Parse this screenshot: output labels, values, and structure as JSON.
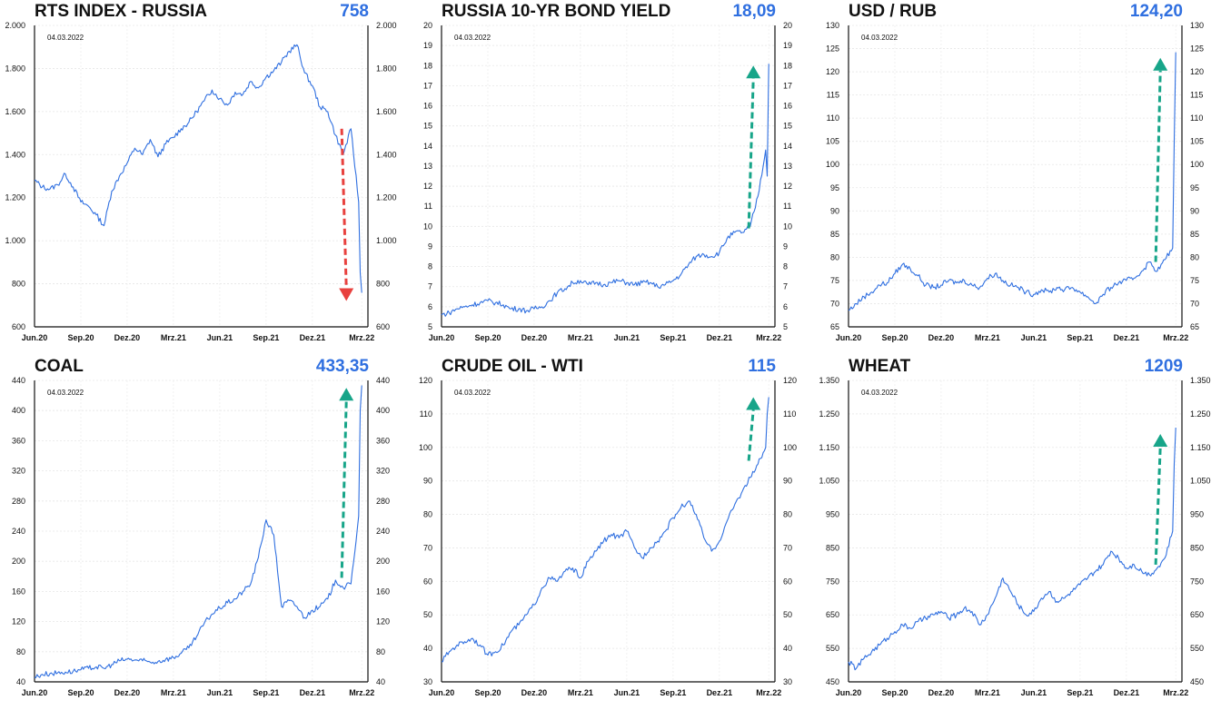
{
  "colors": {
    "line": "#2f6fe0",
    "up_arrow": "#17a589",
    "down_arrow": "#e8413e",
    "value": "#2f6fe0"
  },
  "chart_data": [
    {
      "type": "line",
      "title": "RTS INDEX - RUSSIA",
      "last_value_label": "758",
      "date_label": "04.03.2022",
      "x_ticks": [
        "Jun.20",
        "Sep.20",
        "Dez.20",
        "Mrz.21",
        "Jun.21",
        "Sep.21",
        "Dez.21",
        "Mrz.22"
      ],
      "y_ticks": [
        "600",
        "800",
        "1.000",
        "1.200",
        "1.400",
        "1.600",
        "1.800",
        "2.000"
      ],
      "ylim": [
        600,
        2000
      ],
      "arrow": "down",
      "arrow_from": 1520,
      "arrow_to": 720,
      "series": [
        {
          "x": [
            0,
            0.5,
            1,
            1.5,
            2,
            2.5,
            3,
            3.5,
            4,
            4.5,
            5,
            5.5,
            6,
            6.5,
            7,
            7.5,
            8,
            8.5,
            9,
            9.5,
            10,
            10.5,
            11,
            11.5,
            12,
            12.5,
            13,
            13.5,
            14,
            14.5,
            15,
            15.5,
            16,
            16.5,
            17,
            17.5,
            18,
            18.5,
            19,
            19.5,
            20,
            20.5,
            21,
            21.1,
            21.2
          ],
          "values": [
            1280,
            1250,
            1240,
            1260,
            1310,
            1250,
            1180,
            1160,
            1120,
            1070,
            1230,
            1300,
            1360,
            1430,
            1400,
            1470,
            1390,
            1450,
            1480,
            1520,
            1550,
            1600,
            1650,
            1700,
            1660,
            1630,
            1690,
            1680,
            1740,
            1710,
            1760,
            1790,
            1830,
            1880,
            1910,
            1780,
            1720,
            1620,
            1600,
            1490,
            1400,
            1520,
            1180,
            850,
            758
          ]
        }
      ]
    },
    {
      "type": "line",
      "title": "RUSSIA 10-YR BOND YIELD",
      "last_value_label": "18,09",
      "date_label": "04.03.2022",
      "x_ticks": [
        "Jun.20",
        "Sep.20",
        "Dez.20",
        "Mrz.21",
        "Jun.21",
        "Sep.21",
        "Dez.21",
        "Mrz.22"
      ],
      "y_ticks": [
        "5",
        "6",
        "7",
        "8",
        "9",
        "10",
        "11",
        "12",
        "13",
        "14",
        "15",
        "16",
        "17",
        "18",
        "19",
        "20"
      ],
      "ylim": [
        5,
        20
      ],
      "arrow": "up",
      "arrow_from": 9.9,
      "arrow_to": 18,
      "series": [
        {
          "x": [
            0,
            0.5,
            1,
            1.5,
            2,
            2.5,
            3,
            3.5,
            4,
            4.5,
            5,
            5.5,
            6,
            6.5,
            7,
            7.5,
            8,
            8.5,
            9,
            9.5,
            10,
            10.5,
            11,
            11.5,
            12,
            12.5,
            13,
            13.5,
            14,
            14.5,
            15,
            15.5,
            16,
            16.5,
            17,
            17.5,
            18,
            18.5,
            19,
            19.5,
            20,
            20.5,
            21,
            21.1,
            21.2
          ],
          "values": [
            5.6,
            5.7,
            5.9,
            6.0,
            6.1,
            6.2,
            6.3,
            6.2,
            6.1,
            5.9,
            5.9,
            5.8,
            5.9,
            6.0,
            6.3,
            6.7,
            6.9,
            7.2,
            7.3,
            7.1,
            7.2,
            7.1,
            7.2,
            7.3,
            7.2,
            7.1,
            7.2,
            7.2,
            7.0,
            7.1,
            7.3,
            7.6,
            8.1,
            8.5,
            8.6,
            8.5,
            8.7,
            9.4,
            9.7,
            9.7,
            10.0,
            11.5,
            13.8,
            12.5,
            18.09
          ]
        }
      ]
    },
    {
      "type": "line",
      "title": "USD / RUB",
      "last_value_label": "124,20",
      "date_label": "04.03.2022",
      "x_ticks": [
        "Jun.20",
        "Sep.20",
        "Dez.20",
        "Mrz.21",
        "Jun.21",
        "Sep.21",
        "Dez.21",
        "Mrz.22"
      ],
      "y_ticks": [
        "65",
        "70",
        "75",
        "80",
        "85",
        "90",
        "95",
        "100",
        "105",
        "110",
        "115",
        "120",
        "125",
        "130"
      ],
      "ylim": [
        65,
        130
      ],
      "arrow": "up",
      "arrow_from": 79,
      "arrow_to": 123,
      "series": [
        {
          "x": [
            0,
            0.5,
            1,
            1.5,
            2,
            2.5,
            3,
            3.5,
            4,
            4.5,
            5,
            5.5,
            6,
            6.5,
            7,
            7.5,
            8,
            8.5,
            9,
            9.5,
            10,
            10.5,
            11,
            11.5,
            12,
            12.5,
            13,
            13.5,
            14,
            14.5,
            15,
            15.5,
            16,
            16.5,
            17,
            17.5,
            18,
            18.5,
            19,
            19.5,
            20,
            20.5,
            21,
            21.1,
            21.2
          ],
          "values": [
            68.5,
            70.0,
            71.5,
            72.5,
            74.0,
            74.5,
            76.5,
            78.5,
            77.5,
            76.0,
            74.0,
            73.5,
            74.0,
            75.0,
            74.5,
            75.0,
            74.0,
            73.5,
            75.5,
            76.5,
            75.0,
            74.0,
            73.5,
            72.5,
            72.0,
            73.0,
            72.5,
            73.5,
            73.0,
            73.5,
            72.5,
            71.5,
            70.0,
            72.0,
            73.5,
            74.5,
            75.0,
            75.5,
            77.0,
            79.0,
            77.0,
            79.5,
            82.0,
            105.0,
            124.2
          ]
        }
      ]
    },
    {
      "type": "line",
      "title": "COAL",
      "last_value_label": "433,35",
      "date_label": "04.03.2022",
      "x_ticks": [
        "Jun.20",
        "Sep.20",
        "Dez.20",
        "Mrz.21",
        "Jun.21",
        "Sep.21",
        "Dez.21",
        "Mrz.22"
      ],
      "y_ticks": [
        "40",
        "80",
        "120",
        "160",
        "200",
        "240",
        "280",
        "320",
        "360",
        "400",
        "440"
      ],
      "ylim": [
        40,
        440
      ],
      "arrow": "up",
      "arrow_from": 178,
      "arrow_to": 430,
      "series": [
        {
          "x": [
            0,
            0.5,
            1,
            1.5,
            2,
            2.5,
            3,
            3.5,
            4,
            4.5,
            5,
            5.5,
            6,
            6.5,
            7,
            7.5,
            8,
            8.5,
            9,
            9.5,
            10,
            10.5,
            11,
            11.5,
            12,
            12.5,
            13,
            13.5,
            14,
            14.5,
            15,
            15.5,
            16,
            16.5,
            17,
            17.5,
            18,
            18.5,
            19,
            19.5,
            20,
            20.5,
            21,
            21.1,
            21.2
          ],
          "values": [
            46,
            50,
            51,
            52,
            53,
            54,
            56,
            58,
            60,
            58,
            63,
            68,
            70,
            69,
            68,
            66,
            67,
            70,
            72,
            78,
            85,
            100,
            118,
            130,
            138,
            145,
            150,
            160,
            170,
            205,
            255,
            235,
            140,
            148,
            140,
            125,
            135,
            140,
            150,
            175,
            165,
            170,
            260,
            400,
            433.35
          ]
        }
      ]
    },
    {
      "type": "line",
      "title": "CRUDE OIL - WTI",
      "last_value_label": "115",
      "date_label": "04.03.2022",
      "x_ticks": [
        "Jun.20",
        "Sep.20",
        "Dez.20",
        "Mrz.21",
        "Jun.21",
        "Sep.21",
        "Dez.21",
        "Mrz.22"
      ],
      "y_ticks": [
        "30",
        "40",
        "50",
        "60",
        "70",
        "80",
        "90",
        "100",
        "110",
        "120"
      ],
      "ylim": [
        30,
        120
      ],
      "arrow": "up",
      "arrow_from": 96,
      "arrow_to": 115,
      "series": [
        {
          "x": [
            0,
            0.5,
            1,
            1.5,
            2,
            2.5,
            3,
            3.5,
            4,
            4.5,
            5,
            5.5,
            6,
            6.5,
            7,
            7.5,
            8,
            8.5,
            9,
            9.5,
            10,
            10.5,
            11,
            11.5,
            12,
            12.5,
            13,
            13.5,
            14,
            14.5,
            15,
            15.5,
            16,
            16.5,
            17,
            17.5,
            18,
            18.5,
            19,
            19.5,
            20,
            20.5,
            21,
            21.1,
            21.2
          ],
          "values": [
            36,
            39,
            41,
            42,
            43,
            41,
            38,
            39,
            41,
            45,
            47,
            50,
            53,
            58,
            61,
            60,
            63,
            64,
            61,
            66,
            69,
            72,
            74,
            73,
            75,
            70,
            67,
            70,
            72,
            75,
            79,
            82,
            84,
            80,
            73,
            69,
            72,
            78,
            83,
            87,
            91,
            95,
            100,
            110,
            115
          ]
        }
      ]
    },
    {
      "type": "line",
      "title": "WHEAT",
      "last_value_label": "1209",
      "date_label": "04.03.2022",
      "x_ticks": [
        "Jun.20",
        "Sep.20",
        "Dez.20",
        "Mrz.21",
        "Jun.21",
        "Sep.21",
        "Dez.21",
        "Mrz.22"
      ],
      "y_ticks": [
        "450",
        "550",
        "650",
        "750",
        "850",
        "950",
        "1.050",
        "1.150",
        "1.250",
        "1.350"
      ],
      "ylim": [
        450,
        1350
      ],
      "arrow": "up",
      "arrow_from": 800,
      "arrow_to": 1190,
      "series": [
        {
          "x": [
            0,
            0.5,
            1,
            1.5,
            2,
            2.5,
            3,
            3.5,
            4,
            4.5,
            5,
            5.5,
            6,
            6.5,
            7,
            7.5,
            8,
            8.5,
            9,
            9.5,
            10,
            10.5,
            11,
            11.5,
            12,
            12.5,
            13,
            13.5,
            14,
            14.5,
            15,
            15.5,
            16,
            16.5,
            17,
            17.5,
            18,
            18.5,
            19,
            19.5,
            20,
            20.5,
            21,
            21.1,
            21.2
          ],
          "values": [
            510,
            490,
            520,
            540,
            560,
            580,
            600,
            620,
            610,
            630,
            640,
            650,
            660,
            640,
            650,
            670,
            660,
            620,
            650,
            700,
            760,
            720,
            680,
            650,
            660,
            700,
            720,
            690,
            700,
            720,
            740,
            760,
            780,
            800,
            840,
            820,
            790,
            800,
            780,
            770,
            790,
            820,
            900,
            1100,
            1209
          ]
        }
      ]
    }
  ]
}
